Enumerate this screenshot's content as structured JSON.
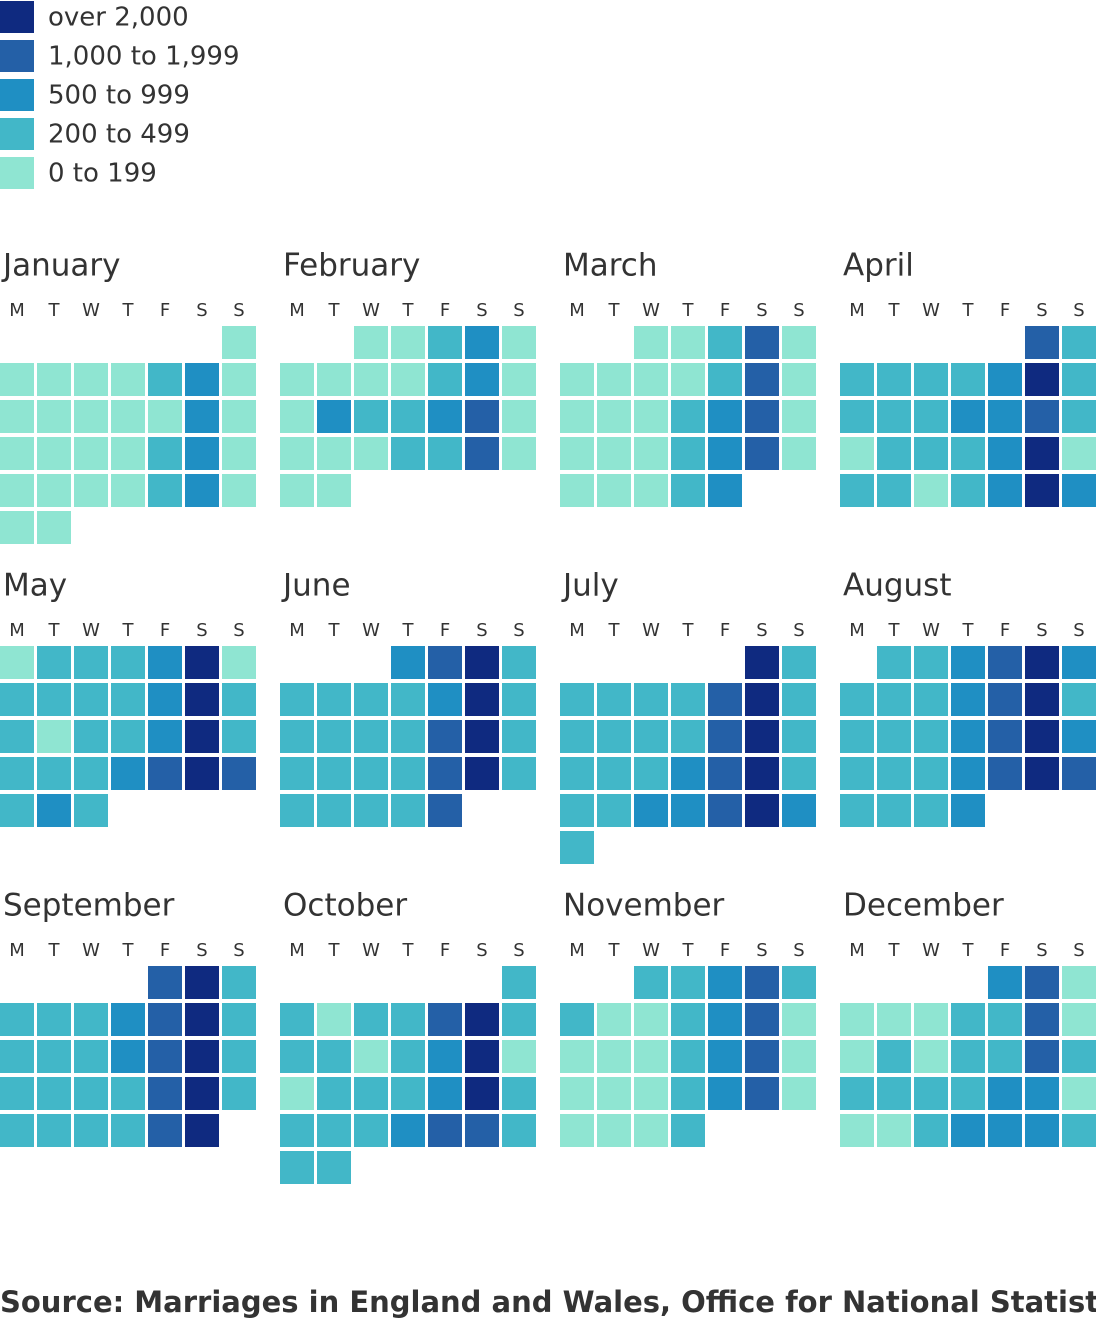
{
  "chart_data": {
    "type": "calendar-heatmap",
    "legend": [
      {
        "label": "over 2,000",
        "color": "#0f2a80"
      },
      {
        "label": "1,000 to 1,999",
        "color": "#2460a7"
      },
      {
        "label": "500 to 999",
        "color": "#1f8fc3"
      },
      {
        "label": "200 to 499",
        "color": "#42b7c8"
      },
      {
        "label": "0 to 199",
        "color": "#8fe5d2"
      }
    ],
    "weekdays": [
      "M",
      "T",
      "W",
      "T",
      "F",
      "S",
      "S"
    ],
    "months": [
      {
        "name": "January",
        "start": 6,
        "levels": [
          4,
          4,
          4,
          4,
          4,
          3,
          2,
          4,
          4,
          4,
          4,
          4,
          4,
          2,
          4,
          4,
          4,
          4,
          4,
          3,
          2,
          4,
          4,
          4,
          4,
          4,
          3,
          2,
          4,
          4,
          4
        ]
      },
      {
        "name": "February",
        "start": 2,
        "levels": [
          4,
          4,
          3,
          2,
          4,
          4,
          4,
          4,
          4,
          3,
          2,
          4,
          4,
          2,
          3,
          3,
          2,
          1,
          4,
          4,
          4,
          4,
          3,
          3,
          1,
          4,
          4,
          4
        ]
      },
      {
        "name": "March",
        "start": 2,
        "levels": [
          4,
          4,
          3,
          1,
          4,
          4,
          4,
          4,
          4,
          3,
          1,
          4,
          4,
          4,
          4,
          3,
          2,
          1,
          4,
          4,
          4,
          4,
          3,
          2,
          1,
          4,
          4,
          4,
          4,
          3,
          2
        ]
      },
      {
        "name": "April",
        "start": 5,
        "levels": [
          1,
          3,
          3,
          3,
          3,
          3,
          2,
          0,
          3,
          3,
          3,
          3,
          2,
          2,
          1,
          3,
          4,
          3,
          3,
          3,
          2,
          0,
          4,
          3,
          3,
          4,
          3,
          2,
          0,
          2
        ]
      },
      {
        "name": "May",
        "start": 0,
        "levels": [
          4,
          3,
          3,
          3,
          2,
          0,
          4,
          3,
          3,
          3,
          3,
          2,
          0,
          3,
          3,
          4,
          3,
          3,
          2,
          0,
          3,
          3,
          3,
          3,
          2,
          1,
          0,
          1,
          3,
          2,
          3
        ]
      },
      {
        "name": "June",
        "start": 3,
        "levels": [
          2,
          1,
          0,
          3,
          3,
          3,
          3,
          3,
          2,
          0,
          3,
          3,
          3,
          3,
          3,
          1,
          0,
          3,
          3,
          3,
          3,
          3,
          1,
          0,
          3,
          3,
          3,
          3,
          3,
          1
        ]
      },
      {
        "name": "July",
        "start": 5,
        "levels": [
          0,
          3,
          3,
          3,
          3,
          3,
          1,
          0,
          3,
          3,
          3,
          3,
          3,
          1,
          0,
          3,
          3,
          3,
          3,
          2,
          1,
          0,
          3,
          3,
          3,
          2,
          2,
          1,
          0,
          2,
          3
        ]
      },
      {
        "name": "August",
        "start": 1,
        "levels": [
          3,
          3,
          2,
          1,
          0,
          2,
          3,
          3,
          3,
          2,
          1,
          0,
          3,
          3,
          3,
          3,
          2,
          1,
          0,
          2,
          3,
          3,
          3,
          2,
          1,
          0,
          1,
          3,
          3,
          3,
          2
        ]
      },
      {
        "name": "September",
        "start": 4,
        "levels": [
          1,
          0,
          3,
          3,
          3,
          3,
          2,
          1,
          0,
          3,
          3,
          3,
          3,
          2,
          1,
          0,
          3,
          3,
          3,
          3,
          3,
          1,
          0,
          3,
          3,
          3,
          3,
          3,
          1,
          0
        ]
      },
      {
        "name": "October",
        "start": 6,
        "levels": [
          3,
          3,
          4,
          3,
          3,
          1,
          0,
          3,
          3,
          3,
          4,
          3,
          2,
          0,
          4,
          4,
          3,
          3,
          3,
          2,
          0,
          3,
          3,
          3,
          3,
          2,
          1,
          1,
          3,
          3,
          3
        ]
      },
      {
        "name": "November",
        "start": 2,
        "levels": [
          3,
          3,
          2,
          1,
          3,
          3,
          4,
          4,
          3,
          2,
          1,
          4,
          4,
          4,
          4,
          3,
          2,
          1,
          4,
          4,
          4,
          4,
          3,
          2,
          1,
          4,
          4,
          4,
          4,
          3
        ]
      },
      {
        "name": "December",
        "start": 4,
        "levels": [
          2,
          1,
          4,
          4,
          4,
          4,
          3,
          3,
          1,
          4,
          4,
          3,
          4,
          3,
          3,
          1,
          3,
          3,
          3,
          3,
          3,
          2,
          2,
          4,
          4,
          4,
          3,
          2,
          2,
          2,
          3
        ]
      }
    ],
    "source": "Source: Marriages in England and Wales, Office for National Statistics."
  }
}
